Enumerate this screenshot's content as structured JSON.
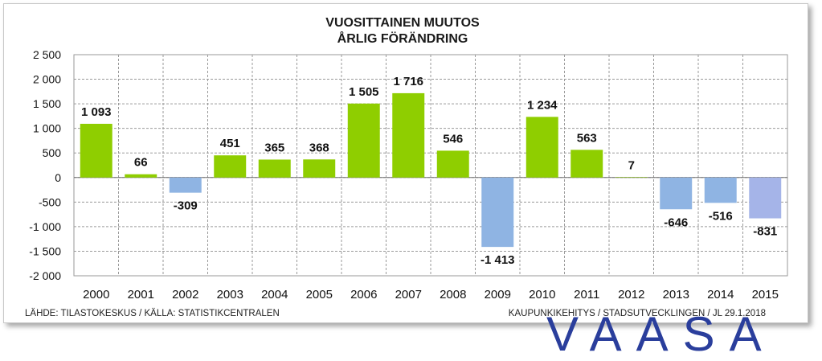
{
  "chart_data": {
    "type": "bar",
    "title": "VUOSITTAINEN MUUTOS",
    "subtitle": "ÅRLIG FÖRÄNDRING",
    "categories": [
      "2000",
      "2001",
      "2002",
      "2003",
      "2004",
      "2005",
      "2006",
      "2007",
      "2008",
      "2009",
      "2010",
      "2011",
      "2012",
      "2013",
      "2014",
      "2015"
    ],
    "values": [
      1093,
      66,
      -309,
      451,
      365,
      368,
      1505,
      1716,
      546,
      -1413,
      1234,
      563,
      7,
      -646,
      -516,
      -831
    ],
    "data_labels": [
      "1 093",
      "66",
      "-309",
      "451",
      "365",
      "368",
      "1 505",
      "1 716",
      "546",
      "-1 413",
      "1 234",
      "563",
      "7",
      "-646",
      "-516",
      "-831"
    ],
    "ylim": [
      -2000,
      2500
    ],
    "yticks": [
      2500,
      2000,
      1500,
      1000,
      500,
      0,
      -500,
      -1000,
      -1500,
      -2000
    ],
    "ytick_labels": [
      "2 500",
      "2 000",
      "1 500",
      "1 000",
      "500",
      "0",
      "-500",
      "-1 000",
      "-1 500",
      "-2 000"
    ],
    "xlabel": "",
    "ylabel": "",
    "grid": "horizontal and vertical dashed",
    "legend": "none",
    "colors": {
      "positive": "#8fce00",
      "negative": "#8fb4e3",
      "last_negative": "#a5b4e8"
    }
  },
  "footer": {
    "source": "LÄHDE: TILASTOKESKUS / KÄLLA: STATISTIKCENTRALEN",
    "author": "KAUPUNKIKEHITYS  / STADSUTVECKLINGEN / JL 29.1.2018"
  },
  "logo": {
    "text": "VAASA"
  }
}
